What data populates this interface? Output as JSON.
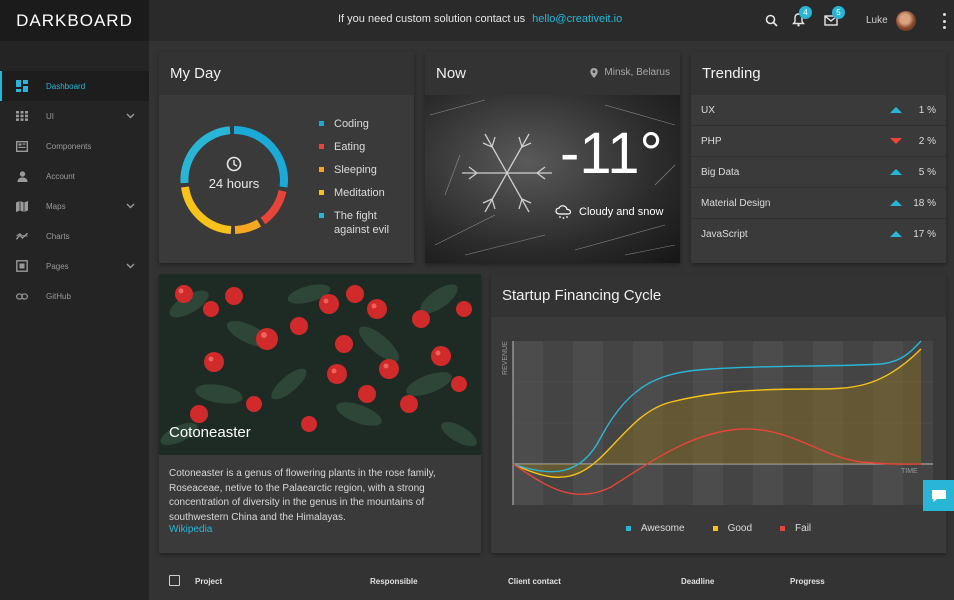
{
  "brand": "DARKBOARD",
  "contact": {
    "text": "If you need custom solution contact us",
    "email": "hello@creativeit.io"
  },
  "topbar": {
    "notifications_count": "4",
    "messages_count": "5",
    "user_name": "Luke"
  },
  "sidebar": {
    "items": [
      {
        "label": "Dashboard",
        "icon": "dashboard-icon"
      },
      {
        "label": "UI",
        "icon": "grid-icon"
      },
      {
        "label": "Components",
        "icon": "components-icon"
      },
      {
        "label": "Account",
        "icon": "user-icon"
      },
      {
        "label": "Maps",
        "icon": "map-icon"
      },
      {
        "label": "Charts",
        "icon": "chart-icon"
      },
      {
        "label": "Pages",
        "icon": "pages-icon"
      },
      {
        "label": "GitHub",
        "icon": "link-icon"
      }
    ]
  },
  "myday": {
    "title": "My Day",
    "center_label": "24 hours",
    "legend": [
      {
        "label": "Coding",
        "color": "#1ba9d8"
      },
      {
        "label": "Eating",
        "color": "#e8443a"
      },
      {
        "label": "Sleeping",
        "color": "#f5a623"
      },
      {
        "label": "Meditation",
        "color": "#f7c21a"
      },
      {
        "label": "The fight against evil",
        "color": "#29b6d6"
      }
    ]
  },
  "now": {
    "title": "Now",
    "location": "Minsk, Belarus",
    "temperature": "-11°",
    "condition": "Cloudy and snow"
  },
  "trending": {
    "title": "Trending",
    "rows": [
      {
        "label": "UX",
        "direction": "up",
        "pct": "1 %"
      },
      {
        "label": "PHP",
        "direction": "down",
        "pct": "2 %"
      },
      {
        "label": "Big Data",
        "direction": "up",
        "pct": "5 %"
      },
      {
        "label": "Material Design",
        "direction": "up",
        "pct": "18 %"
      },
      {
        "label": "JavaScript",
        "direction": "up",
        "pct": "17 %"
      }
    ]
  },
  "plant": {
    "title": "Cotoneaster",
    "description": "Cotoneaster is a genus of flowering plants in the rose family, Roseaceae, netive to the Palaearctic region, with a strong concentration of diversity in the genus in the mountains of southwestern China and the Himalayas.",
    "link": "Wikipedia"
  },
  "startup": {
    "title": "Startup Financing Cycle",
    "ylabel": "REVENUE",
    "xlabel": "TIME",
    "legend": [
      {
        "label": "Awesome",
        "color": "#29b6d6"
      },
      {
        "label": "Good",
        "color": "#f7c21a"
      },
      {
        "label": "Fail",
        "color": "#e8443a"
      }
    ]
  },
  "table": {
    "headers": [
      "Project",
      "Responsible",
      "Client contact",
      "Deadline",
      "Progress"
    ]
  }
}
